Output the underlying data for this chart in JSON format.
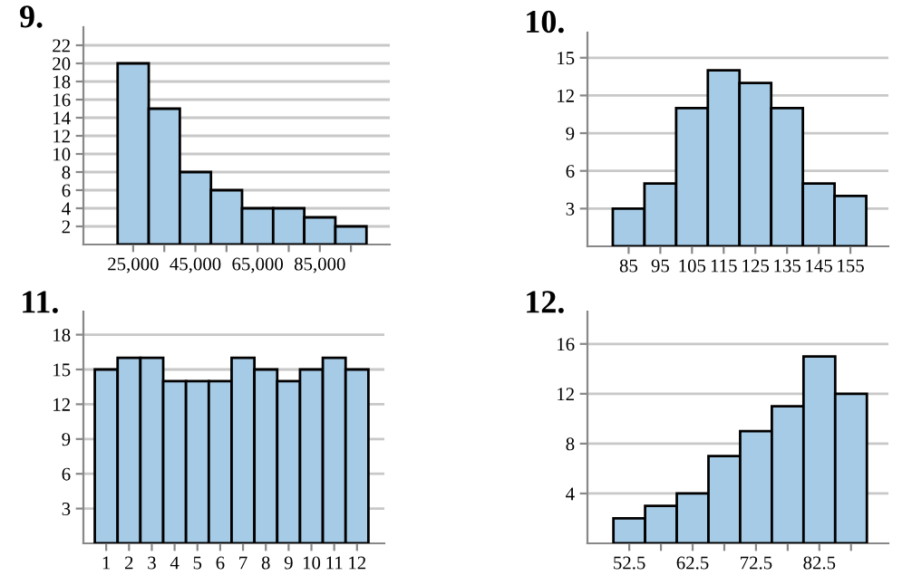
{
  "chart_data": [
    {
      "type": "histogram",
      "title": "9.",
      "bins": [
        20000,
        30000,
        40000,
        50000,
        60000,
        70000,
        80000,
        90000,
        100000
      ],
      "values": [
        20,
        15,
        8,
        6,
        4,
        4,
        3,
        2
      ],
      "color": "#a6cbe6",
      "xlim": [
        9000,
        107500
      ],
      "xticks": [
        {
          "value": 25000,
          "label": "25,000"
        },
        {
          "value": 35000,
          "label": null
        },
        {
          "value": 45000,
          "label": "45,000"
        },
        {
          "value": 55000,
          "label": null
        },
        {
          "value": 65000,
          "label": "65,000"
        },
        {
          "value": 75000,
          "label": null
        },
        {
          "value": 85000,
          "label": "85,000"
        },
        {
          "value": 95000,
          "label": null
        }
      ],
      "ylim": [
        0,
        24
      ],
      "yticks": [
        2,
        4,
        6,
        8,
        10,
        12,
        14,
        16,
        18,
        20,
        22
      ],
      "grid": "y"
    },
    {
      "type": "histogram",
      "title": "10.",
      "bins": [
        80,
        90,
        100,
        110,
        120,
        130,
        140,
        150,
        160
      ],
      "values": [
        3,
        5,
        11,
        14,
        13,
        11,
        5,
        4
      ],
      "color": "#a6cbe6",
      "xlim": [
        72,
        167
      ],
      "xticks": [
        85,
        95,
        105,
        115,
        125,
        135,
        145,
        155
      ],
      "ylim": [
        0,
        17
      ],
      "yticks": [
        3,
        6,
        9,
        12,
        15
      ],
      "grid": "y"
    },
    {
      "type": "histogram",
      "title": "11.",
      "bins": [
        0.5,
        1.5,
        2.5,
        3.5,
        4.5,
        5.5,
        6.5,
        7.5,
        8.5,
        9.5,
        10.5,
        11.5,
        12.5
      ],
      "values": [
        15,
        16,
        16,
        14,
        14,
        14,
        16,
        15,
        14,
        15,
        16,
        15
      ],
      "color": "#a6cbe6",
      "xlim": [
        0,
        13.2
      ],
      "xticks": [
        1,
        2,
        3,
        4,
        5,
        6,
        7,
        8,
        9,
        10,
        11,
        12
      ],
      "ylim": [
        0,
        20
      ],
      "yticks": [
        3,
        6,
        9,
        12,
        15,
        18
      ],
      "grid": "y"
    },
    {
      "type": "histogram",
      "title": "12.",
      "bins": [
        50,
        55,
        60,
        65,
        70,
        75,
        80,
        85,
        90
      ],
      "values": [
        2,
        3,
        4,
        7,
        9,
        11,
        15,
        12
      ],
      "color": "#a6cbe6",
      "xlim": [
        45.9,
        93.4
      ],
      "xticks": [
        52.5,
        {
          "value": 57.5,
          "label": null
        },
        62.5,
        {
          "value": 67.5,
          "label": null
        },
        72.5,
        {
          "value": 77.5,
          "label": null
        },
        82.5,
        {
          "value": 87.5,
          "label": null
        }
      ],
      "ylim": [
        0,
        18.6
      ],
      "yticks": [
        4,
        8,
        12,
        16
      ],
      "grid": "y"
    }
  ]
}
